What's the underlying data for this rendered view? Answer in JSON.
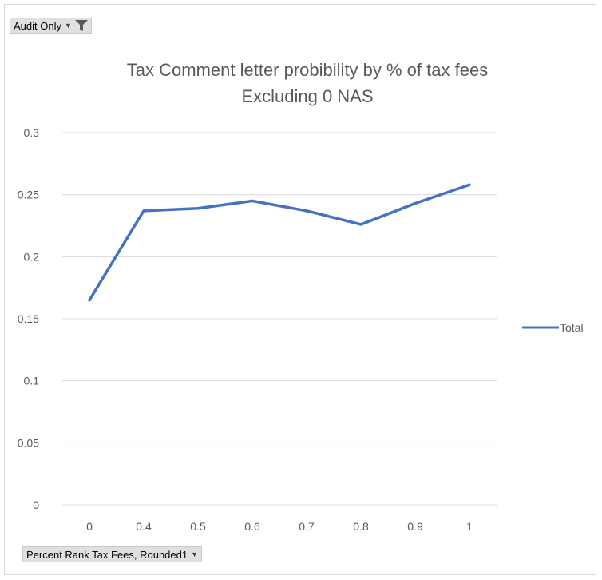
{
  "filter_button": {
    "label": "Audit Only",
    "arrow_icon": "dropdown-arrow-icon",
    "filter_icon": "funnel-icon"
  },
  "axis_field_button": {
    "label": "Percent Rank Tax Fees, Rounded1",
    "arrow_icon": "dropdown-arrow-icon"
  },
  "chart_data": {
    "type": "line",
    "title": "Tax Comment letter probibility by % of tax fees",
    "subtitle": "Excluding 0 NAS",
    "categories": [
      "0",
      "0.4",
      "0.5",
      "0.6",
      "0.7",
      "0.8",
      "0.9",
      "1"
    ],
    "series": [
      {
        "name": "Total",
        "color": "#4472c4",
        "values": [
          0.165,
          0.237,
          0.239,
          0.245,
          0.237,
          0.226,
          0.243,
          0.258
        ]
      }
    ],
    "y_ticks": [
      "0",
      "0.05",
      "0.1",
      "0.15",
      "0.2",
      "0.25",
      "0.3"
    ],
    "ylim": [
      0,
      0.3
    ],
    "grid": true,
    "legend_position": "right",
    "colors": {
      "gridline": "#d9d9d9",
      "text": "#595959",
      "line": "#4472c4"
    }
  }
}
